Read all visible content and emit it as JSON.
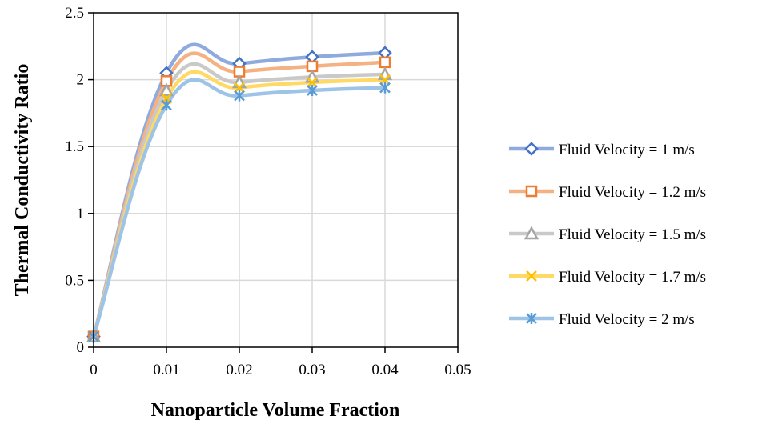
{
  "chart_data": {
    "type": "line",
    "title": "",
    "xlabel": "Nanoparticle Volume Fraction",
    "ylabel": "Thermal Conductivity Ratio",
    "xlim": [
      0,
      0.05
    ],
    "ylim": [
      0,
      2.5
    ],
    "xticks": [
      0,
      0.01,
      0.02,
      0.03,
      0.04,
      0.05
    ],
    "xtick_labels": [
      "0",
      "0.01",
      "0.02",
      "0.03",
      "0.04",
      "0.05"
    ],
    "yticks": [
      0,
      0.5,
      1,
      1.5,
      2,
      2.5
    ],
    "ytick_labels": [
      "0",
      "0.5",
      "1",
      "1.5",
      "2",
      "2.5"
    ],
    "grid": true,
    "smoothed": true,
    "legend_position": "right",
    "x": [
      0,
      0.01,
      0.02,
      0.03,
      0.04
    ],
    "series": [
      {
        "name": "Fluid Velocity = 1 m/s",
        "values": [
          0.08,
          2.05,
          2.12,
          2.17,
          2.2
        ],
        "color": "#4472C4",
        "line_color": "#8FAADC",
        "marker": "diamond"
      },
      {
        "name": "Fluid Velocity = 1.2 m/s",
        "values": [
          0.08,
          1.99,
          2.06,
          2.1,
          2.13
        ],
        "color": "#ED7D31",
        "line_color": "#F4B183",
        "marker": "square"
      },
      {
        "name": "Fluid Velocity = 1.5 m/s",
        "values": [
          0.08,
          1.92,
          1.98,
          2.02,
          2.04
        ],
        "color": "#A5A5A5",
        "line_color": "#C9C9C9",
        "marker": "triangle"
      },
      {
        "name": "Fluid Velocity = 1.7 m/s",
        "values": [
          0.08,
          1.86,
          1.94,
          1.98,
          2.0
        ],
        "color": "#FFC000",
        "line_color": "#FFD966",
        "marker": "x"
      },
      {
        "name": "Fluid Velocity = 2 m/s",
        "values": [
          0.08,
          1.81,
          1.88,
          1.92,
          1.94
        ],
        "color": "#5B9BD5",
        "line_color": "#9DC3E6",
        "marker": "star"
      }
    ]
  }
}
